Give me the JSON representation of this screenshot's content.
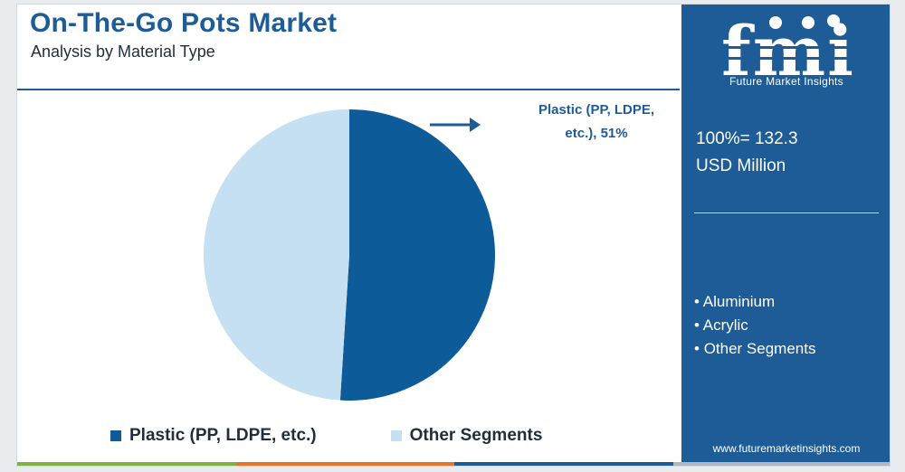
{
  "title": "On-The-Go Pots Market",
  "subtitle": "Analysis by Material Type",
  "colors": {
    "brand": "#1d5c96",
    "plastic": "#0d5b98",
    "other": "#c5e0f2",
    "bar": [
      "#7cb342",
      "#e8712c",
      "#1d5c96",
      "#b0b7bf"
    ]
  },
  "chart_data": {
    "type": "pie",
    "slices": [
      {
        "label": "Plastic (PP, LDPE, etc.)",
        "value": 51
      },
      {
        "label": "Other Segments",
        "value": 49
      }
    ],
    "annotation": "Plastic (PP, LDPE, etc.), 51%",
    "legend": [
      "Plastic (PP, LDPE, etc.)",
      "Other Segments"
    ],
    "legend_position": "bottom"
  },
  "callout": {
    "line1": "Plastic (PP, LDPE,",
    "line2": "etc.), 51%"
  },
  "sidebar": {
    "logo_letters": "fmi",
    "logo_text": "Future Market Insights",
    "total_line1": "100%= 132.3",
    "total_line2": "USD Million",
    "segments": [
      "Aluminium",
      "Acrylic",
      "Other Segments"
    ],
    "url": "www.futuremarketinsights.com"
  }
}
